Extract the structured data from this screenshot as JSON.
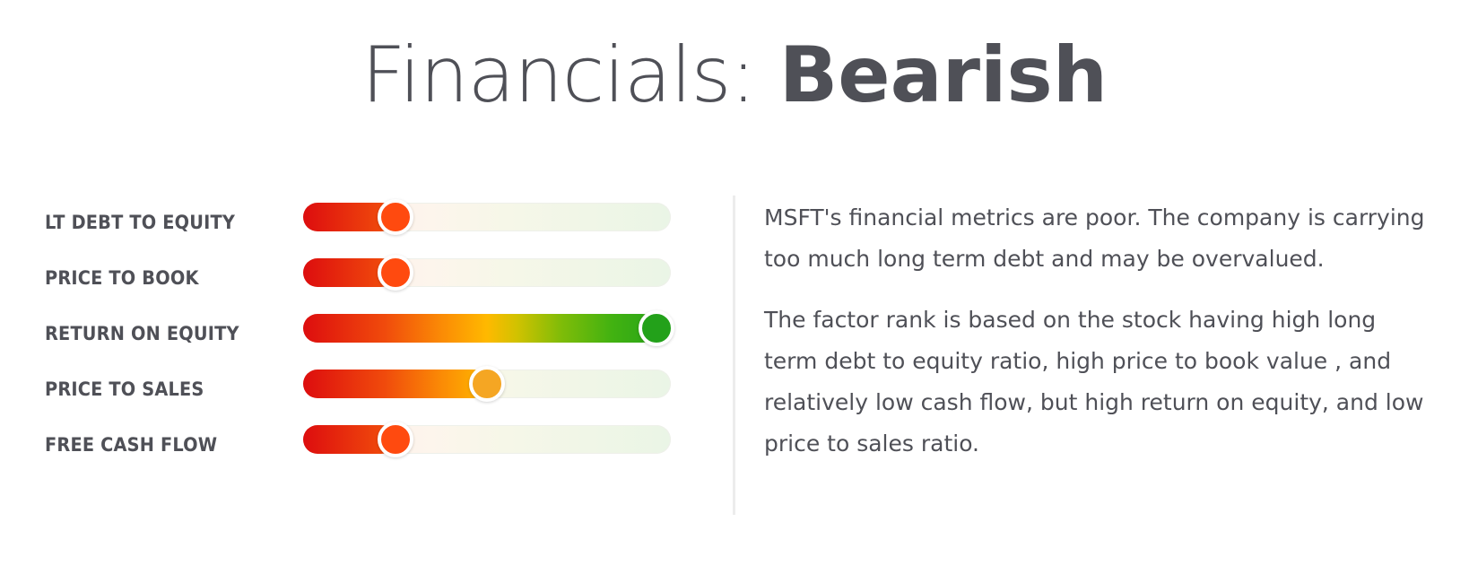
{
  "header": {
    "prefix": "Financials: ",
    "verdict": "Bearish"
  },
  "metrics": [
    {
      "label": "LT DEBT TO EQUITY",
      "level": 0.25,
      "knob_color": "#ff4a0f"
    },
    {
      "label": "PRICE TO BOOK",
      "level": 0.25,
      "knob_color": "#ff4a0f"
    },
    {
      "label": "RETURN ON EQUITY",
      "level": 0.96,
      "knob_color": "#23a11a"
    },
    {
      "label": "PRICE TO SALES",
      "level": 0.5,
      "knob_color": "#f5a623"
    },
    {
      "label": "FREE CASH FLOW",
      "level": 0.25,
      "knob_color": "#ff4a0f"
    }
  ],
  "summary": {
    "paragraphs": [
      "MSFT's financial metrics are poor. The company is carrying too much long term debt and may be overvalued.",
      "The factor rank is based on the stock having high long term debt to equity ratio, high price to book value , and relatively low cash flow, but high return on equity, and low price to sales ratio."
    ]
  }
}
